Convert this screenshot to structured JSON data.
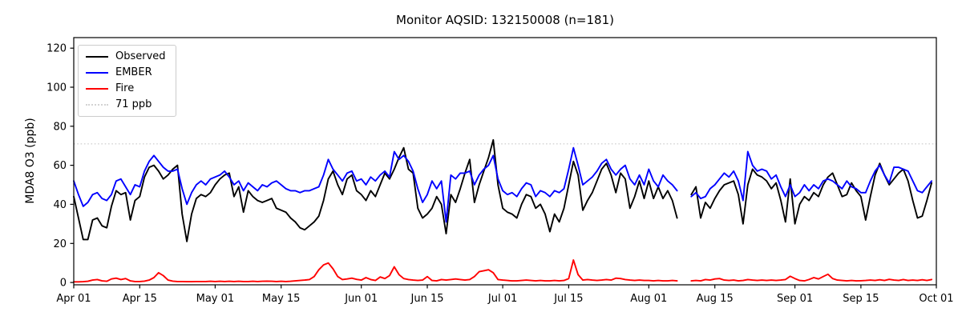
{
  "chart_data": {
    "type": "line",
    "title": "Monitor AQSID: 132150008 (n=181)",
    "ylabel": "MDA8 O3 (ppb)",
    "xlabel": "",
    "n_points": 181,
    "x_unit": "days since Apr 01",
    "xlim": [
      0,
      183
    ],
    "ylim": [
      -1.2,
      125.4
    ],
    "grid": false,
    "legend_position": "upper-left",
    "y_ticks": [
      0,
      20,
      40,
      60,
      80,
      100,
      120
    ],
    "x_ticks": [
      {
        "day": 0,
        "label": "Apr 01"
      },
      {
        "day": 14,
        "label": "Apr 15"
      },
      {
        "day": 30,
        "label": "May 01"
      },
      {
        "day": 44,
        "label": "May 15"
      },
      {
        "day": 61,
        "label": "Jun 01"
      },
      {
        "day": 75,
        "label": "Jun 15"
      },
      {
        "day": 91,
        "label": "Jul 01"
      },
      {
        "day": 105,
        "label": "Jul 15"
      },
      {
        "day": 122,
        "label": "Aug 01"
      },
      {
        "day": 136,
        "label": "Aug 15"
      },
      {
        "day": 153,
        "label": "Sep 01"
      },
      {
        "day": 167,
        "label": "Sep 15"
      },
      {
        "day": 183,
        "label": "Oct 01"
      }
    ],
    "threshold": {
      "label": "71 ppb",
      "value": 71,
      "color": "#d3d3d3",
      "style": "dotted"
    },
    "legend_items": [
      {
        "label": "Observed",
        "color": "#000000",
        "style": "solid"
      },
      {
        "label": "EMBER",
        "color": "#0000ff",
        "style": "solid"
      },
      {
        "label": "Fire",
        "color": "#ff0000",
        "style": "solid"
      },
      {
        "label": "71 ppb",
        "color": "#d3d3d3",
        "style": "dotted"
      }
    ],
    "series": [
      {
        "name": "Observed",
        "color": "#000000",
        "values": [
          44,
          33,
          22,
          22,
          32,
          33,
          29,
          28,
          39,
          47,
          45,
          46,
          32,
          42,
          44,
          54,
          59,
          60,
          57,
          53,
          55,
          58,
          60,
          35,
          21,
          35,
          43,
          45,
          44,
          46,
          50,
          53,
          55,
          56,
          44,
          49,
          36,
          47,
          44,
          42,
          41,
          42,
          43,
          38,
          37,
          36,
          33,
          31,
          28,
          27,
          29,
          31,
          34,
          42,
          53,
          57,
          50,
          45,
          53,
          55,
          47,
          45,
          42,
          47,
          44,
          50,
          56,
          53,
          58,
          64,
          69,
          58,
          56,
          38,
          33,
          35,
          38,
          44,
          40,
          25,
          45,
          41,
          48,
          56,
          63,
          41,
          50,
          57,
          64,
          73,
          50,
          38,
          36,
          35,
          33,
          40,
          45,
          44,
          38,
          40,
          35,
          26,
          35,
          31,
          38,
          50,
          62,
          55,
          37,
          42,
          46,
          52,
          58,
          61,
          55,
          46,
          56,
          53,
          38,
          44,
          52,
          43,
          52,
          43,
          49,
          43,
          47,
          42,
          33,
          null,
          null,
          45,
          49,
          33,
          41,
          38,
          43,
          47,
          50,
          51,
          52,
          45,
          30,
          50,
          58,
          55,
          54,
          52,
          48,
          51,
          42,
          31,
          53,
          30,
          40,
          44,
          42,
          46,
          44,
          50,
          54,
          56,
          50,
          44,
          45,
          51,
          47,
          44,
          32,
          44,
          55,
          61,
          55,
          50,
          53,
          56,
          58,
          52,
          42,
          33,
          34,
          42,
          51
        ]
      },
      {
        "name": "EMBER",
        "color": "#0000ff",
        "values": [
          52,
          45,
          39,
          41,
          45,
          46,
          43,
          42,
          45,
          52,
          53,
          49,
          45,
          50,
          49,
          57,
          62,
          65,
          62,
          59,
          57,
          57,
          58,
          48,
          40,
          46,
          50,
          52,
          50,
          53,
          54,
          55,
          57,
          54,
          50,
          52,
          47,
          51,
          49,
          47,
          50,
          49,
          51,
          52,
          50,
          48,
          47,
          47,
          46,
          47,
          47,
          48,
          49,
          55,
          63,
          58,
          55,
          52,
          56,
          57,
          52,
          53,
          50,
          54,
          52,
          55,
          57,
          54,
          67,
          63,
          65,
          62,
          57,
          48,
          41,
          45,
          52,
          48,
          52,
          31,
          55,
          53,
          56,
          56,
          57,
          50,
          55,
          58,
          60,
          65,
          53,
          47,
          45,
          46,
          44,
          48,
          51,
          50,
          44,
          47,
          46,
          44,
          47,
          46,
          48,
          58,
          69,
          60,
          50,
          52,
          54,
          57,
          61,
          63,
          58,
          55,
          58,
          60,
          53,
          50,
          55,
          50,
          58,
          52,
          49,
          55,
          52,
          50,
          47,
          null,
          null,
          44,
          46,
          43,
          44,
          48,
          50,
          53,
          56,
          54,
          57,
          52,
          42,
          67,
          60,
          57,
          58,
          57,
          53,
          55,
          49,
          44,
          50,
          44,
          46,
          50,
          47,
          50,
          48,
          52,
          53,
          52,
          50,
          48,
          52,
          49,
          48,
          46,
          46,
          52,
          57,
          60,
          55,
          51,
          59,
          59,
          58,
          57,
          52,
          47,
          46,
          49,
          52
        ]
      },
      {
        "name": "Fire",
        "color": "#ff0000",
        "values": [
          0.3,
          0.3,
          0.4,
          0.6,
          1.2,
          1.5,
          0.8,
          0.6,
          1.8,
          2.2,
          1.5,
          2.0,
          0.8,
          0.5,
          0.5,
          0.7,
          1.2,
          2.5,
          5.0,
          3.5,
          1.2,
          0.7,
          0.5,
          0.5,
          0.4,
          0.4,
          0.5,
          0.5,
          0.5,
          0.6,
          0.5,
          0.6,
          0.5,
          0.6,
          0.5,
          0.6,
          0.5,
          0.5,
          0.6,
          0.5,
          0.6,
          0.7,
          0.6,
          0.5,
          0.6,
          0.5,
          0.6,
          0.8,
          1.0,
          1.2,
          1.5,
          3.0,
          6.5,
          9.0,
          10.0,
          7.0,
          3.0,
          1.5,
          1.8,
          2.2,
          1.6,
          1.2,
          2.5,
          1.5,
          1.0,
          2.8,
          2.0,
          3.5,
          8.0,
          4.0,
          2.0,
          1.5,
          1.2,
          1.0,
          1.2,
          3.0,
          1.0,
          0.8,
          1.5,
          1.2,
          1.5,
          1.8,
          1.5,
          1.2,
          1.5,
          3.0,
          5.5,
          6.0,
          6.5,
          5.0,
          1.5,
          1.2,
          1.0,
          0.8,
          0.8,
          1.0,
          1.2,
          1.0,
          0.8,
          1.0,
          0.8,
          0.8,
          1.0,
          0.8,
          1.0,
          2.0,
          11.5,
          4.0,
          1.2,
          1.5,
          1.2,
          1.0,
          1.2,
          1.5,
          1.2,
          2.2,
          2.0,
          1.5,
          1.2,
          1.0,
          1.2,
          1.0,
          1.0,
          0.8,
          1.0,
          0.8,
          0.8,
          1.0,
          0.8,
          null,
          null,
          0.8,
          1.0,
          0.8,
          1.5,
          1.2,
          1.8,
          2.0,
          1.2,
          1.0,
          1.2,
          0.8,
          1.0,
          1.5,
          1.2,
          1.0,
          1.2,
          1.0,
          1.2,
          1.0,
          1.2,
          1.5,
          3.2,
          2.0,
          1.0,
          0.8,
          1.5,
          2.5,
          1.8,
          3.0,
          4.2,
          2.0,
          1.2,
          1.0,
          0.8,
          1.0,
          0.8,
          0.9,
          1.0,
          1.2,
          1.0,
          1.4,
          1.0,
          1.6,
          1.2,
          1.0,
          1.5,
          1.0,
          1.2,
          1.0,
          1.4,
          1.0,
          1.5
        ]
      }
    ]
  }
}
